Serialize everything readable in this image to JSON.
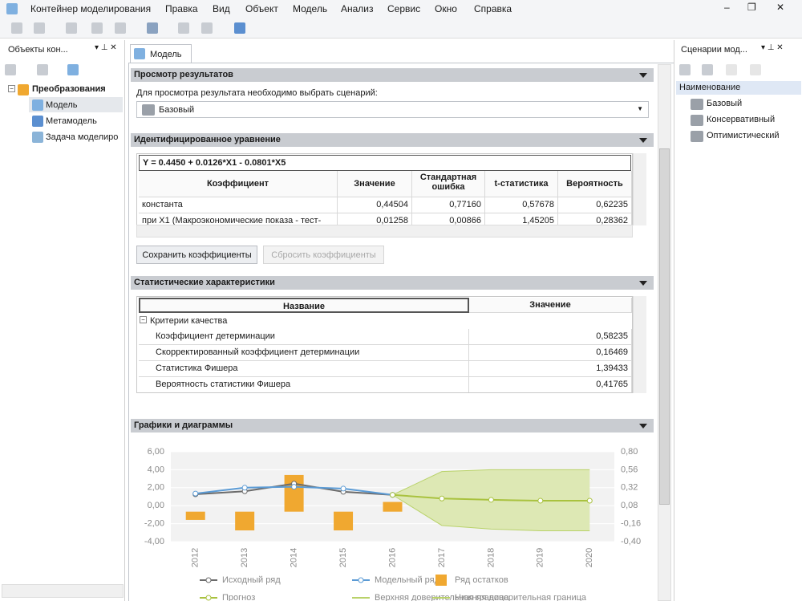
{
  "menu": [
    "Контейнер моделирования",
    "Правка",
    "Вид",
    "Объект",
    "Модель",
    "Анализ",
    "Сервис",
    "Окно",
    "Справка"
  ],
  "left_panel": {
    "title": "Объекты кон...",
    "tree": {
      "root": "Преобразования",
      "children": [
        "Модель",
        "Метамодель",
        "Задача моделиро"
      ]
    }
  },
  "tab": "Модель",
  "results": {
    "title": "Просмотр результатов",
    "prompt": "Для просмотра результата необходимо выбрать сценарий:",
    "scenario": "Базовый"
  },
  "equation": {
    "title": "Идентифицированное уравнение",
    "formula": "Y = 0.4450 + 0.0126*X1 - 0.0801*X5",
    "columns": [
      "Коэффициент",
      "Значение",
      "Стандартная ошибка",
      "t-статистика",
      "Вероятность"
    ],
    "rows": [
      [
        "константа",
        "0,44504",
        "0,77160",
        "0,57678",
        "0,62235"
      ],
      [
        "при X1 (Макроэкономические показа - тест-",
        "0,01258",
        "0,00866",
        "1,45205",
        "0,28362"
      ]
    ],
    "buttons": [
      "Сохранить коэффициенты",
      "Сбросить коэффициенты"
    ]
  },
  "statistics": {
    "title": "Статистические характеристики",
    "columns": [
      "Название",
      "Значение"
    ],
    "group": "Критерии качества",
    "rows": [
      [
        "Коэффициент детерминации",
        "0,58235"
      ],
      [
        "Скорректированный коэффициент детерминации",
        "0,16469"
      ],
      [
        "Статистика Фишера",
        "1,39433"
      ],
      [
        "Вероятность статистики Фишера",
        "0,41765"
      ]
    ]
  },
  "charts_section": {
    "title": "Графики и диаграммы"
  },
  "chart_data": {
    "type": "combo",
    "categories": [
      "2012",
      "2013",
      "2014",
      "2015",
      "2016",
      "2017",
      "2018",
      "2019",
      "2020"
    ],
    "ylim": [
      -4,
      6
    ],
    "yticks": [
      {
        "value": -4,
        "label": "-4,00"
      },
      {
        "value": -2,
        "label": "-2,00"
      },
      {
        "value": 0,
        "label": "0,00"
      },
      {
        "value": 2,
        "label": "2,00"
      },
      {
        "value": 4,
        "label": "4,00"
      },
      {
        "value": 6,
        "label": "6,00"
      }
    ],
    "y2lim": [
      -0.4,
      0.8
    ],
    "y2ticks": [
      {
        "value": -0.4,
        "label": "-0,40"
      },
      {
        "value": -0.16,
        "label": "-0,16"
      },
      {
        "value": 0.08,
        "label": "0,08"
      },
      {
        "value": 0.32,
        "label": "0,32"
      },
      {
        "value": 0.56,
        "label": "0,56"
      },
      {
        "value": 0.8,
        "label": "0,80"
      }
    ],
    "band_color": "#dde8b4",
    "series": [
      {
        "name": "Исходный ряд",
        "type": "line",
        "color": "#6b6b6b",
        "values": [
          1.27,
          1.6,
          2.45,
          1.55,
          1.2,
          null,
          null,
          null,
          null
        ]
      },
      {
        "name": "Модельный ряд",
        "type": "line",
        "color": "#5b9bd5",
        "values": [
          1.35,
          2.0,
          2.1,
          1.9,
          1.2,
          null,
          null,
          null,
          null
        ]
      },
      {
        "name": "Ряд остатков",
        "type": "bar",
        "axis": "y2",
        "color": "#f0a830",
        "values": [
          -0.11,
          -0.25,
          0.49,
          -0.25,
          0.13,
          null,
          null,
          null,
          null
        ]
      },
      {
        "name": "Прогноз",
        "type": "line",
        "color": "#a9c23f",
        "values": [
          null,
          null,
          null,
          null,
          1.2,
          0.8,
          0.65,
          0.55,
          0.55
        ]
      },
      {
        "name": "Верхняя доверительная граница",
        "type": "bound",
        "color": "#b9d26a",
        "values": [
          null,
          null,
          null,
          null,
          1.2,
          3.8,
          4.0,
          4.0,
          4.0
        ]
      },
      {
        "name": "Нижняя доверительная граница",
        "type": "bound",
        "color": "#b9d26a",
        "values": [
          null,
          null,
          null,
          null,
          1.2,
          -2.2,
          -2.6,
          -2.8,
          -2.8
        ]
      }
    ]
  },
  "right_panel": {
    "title": "Сценарии мод...",
    "column": "Наименование",
    "items": [
      "Базовый",
      "Консервативный",
      "Оптимистический"
    ]
  }
}
